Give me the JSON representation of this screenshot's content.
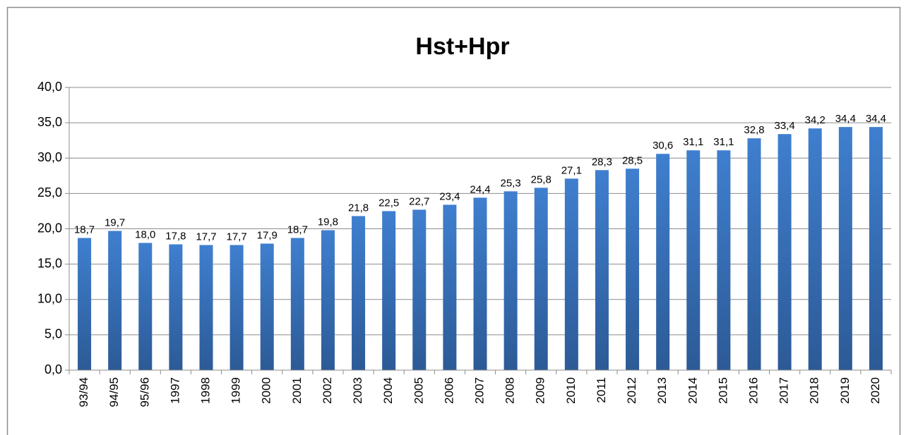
{
  "chart_data": {
    "type": "bar",
    "title": "Hst+Hpr",
    "categories": [
      "93/94",
      "94/95",
      "95/96",
      "1997",
      "1998",
      "1999",
      "2000",
      "2001",
      "2002",
      "2003",
      "2004",
      "2005",
      "2006",
      "2007",
      "2008",
      "2009",
      "2010",
      "2011",
      "2012",
      "2013",
      "2014",
      "2015",
      "2016",
      "2017",
      "2018",
      "2019",
      "2020"
    ],
    "values": [
      18.7,
      19.7,
      18.0,
      17.8,
      17.7,
      17.7,
      17.9,
      18.7,
      19.8,
      21.8,
      22.5,
      22.7,
      23.4,
      24.4,
      25.3,
      25.8,
      27.1,
      28.3,
      28.5,
      30.6,
      31.1,
      31.1,
      32.8,
      33.4,
      34.2,
      34.4,
      34.4
    ],
    "value_labels": [
      "18,7",
      "19,7",
      "18,0",
      "17,8",
      "17,7",
      "17,7",
      "17,9",
      "18,7",
      "19,8",
      "21,8",
      "22,5",
      "22,7",
      "23,4",
      "24,4",
      "25,3",
      "25,8",
      "27,1",
      "28,3",
      "28,5",
      "30,6",
      "31,1",
      "31,1",
      "32,8",
      "33,4",
      "34,2",
      "34,4",
      "34,4"
    ],
    "color": "#3f7fcf",
    "ylim": [
      0,
      40
    ],
    "yticks": [
      {
        "value": 0,
        "label": "0,0"
      },
      {
        "value": 5,
        "label": "5,0"
      },
      {
        "value": 10,
        "label": "10,0"
      },
      {
        "value": 15,
        "label": "15,0"
      },
      {
        "value": 20,
        "label": "20,0"
      },
      {
        "value": 25,
        "label": "25,0"
      },
      {
        "value": 30,
        "label": "30,0"
      },
      {
        "value": 35,
        "label": "35,0"
      },
      {
        "value": 40,
        "label": "40,0"
      }
    ],
    "grid": true
  }
}
